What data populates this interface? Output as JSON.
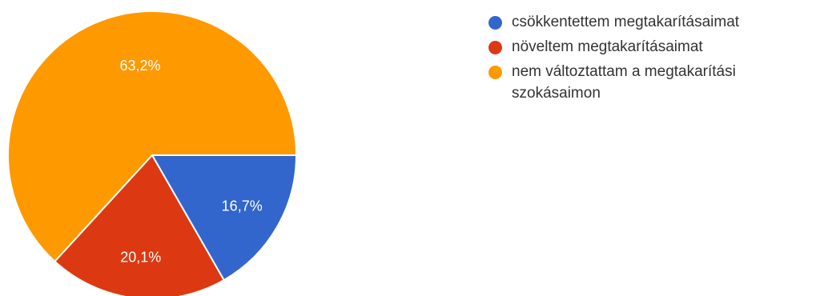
{
  "chart_data": {
    "type": "pie",
    "title": "",
    "legend_position": "right",
    "series": [
      {
        "name": "csökkentettem megtakarításaimat",
        "value": 16.7,
        "label": "16,7%",
        "color": "#3366cc"
      },
      {
        "name": "növeltem megtakarításaimat",
        "value": 20.1,
        "label": "20,1%",
        "color": "#dc3912"
      },
      {
        "name": "nem változtattam a megtakarítási szokásaimon",
        "value": 63.2,
        "label": "63,2%",
        "color": "#ff9900"
      }
    ]
  }
}
